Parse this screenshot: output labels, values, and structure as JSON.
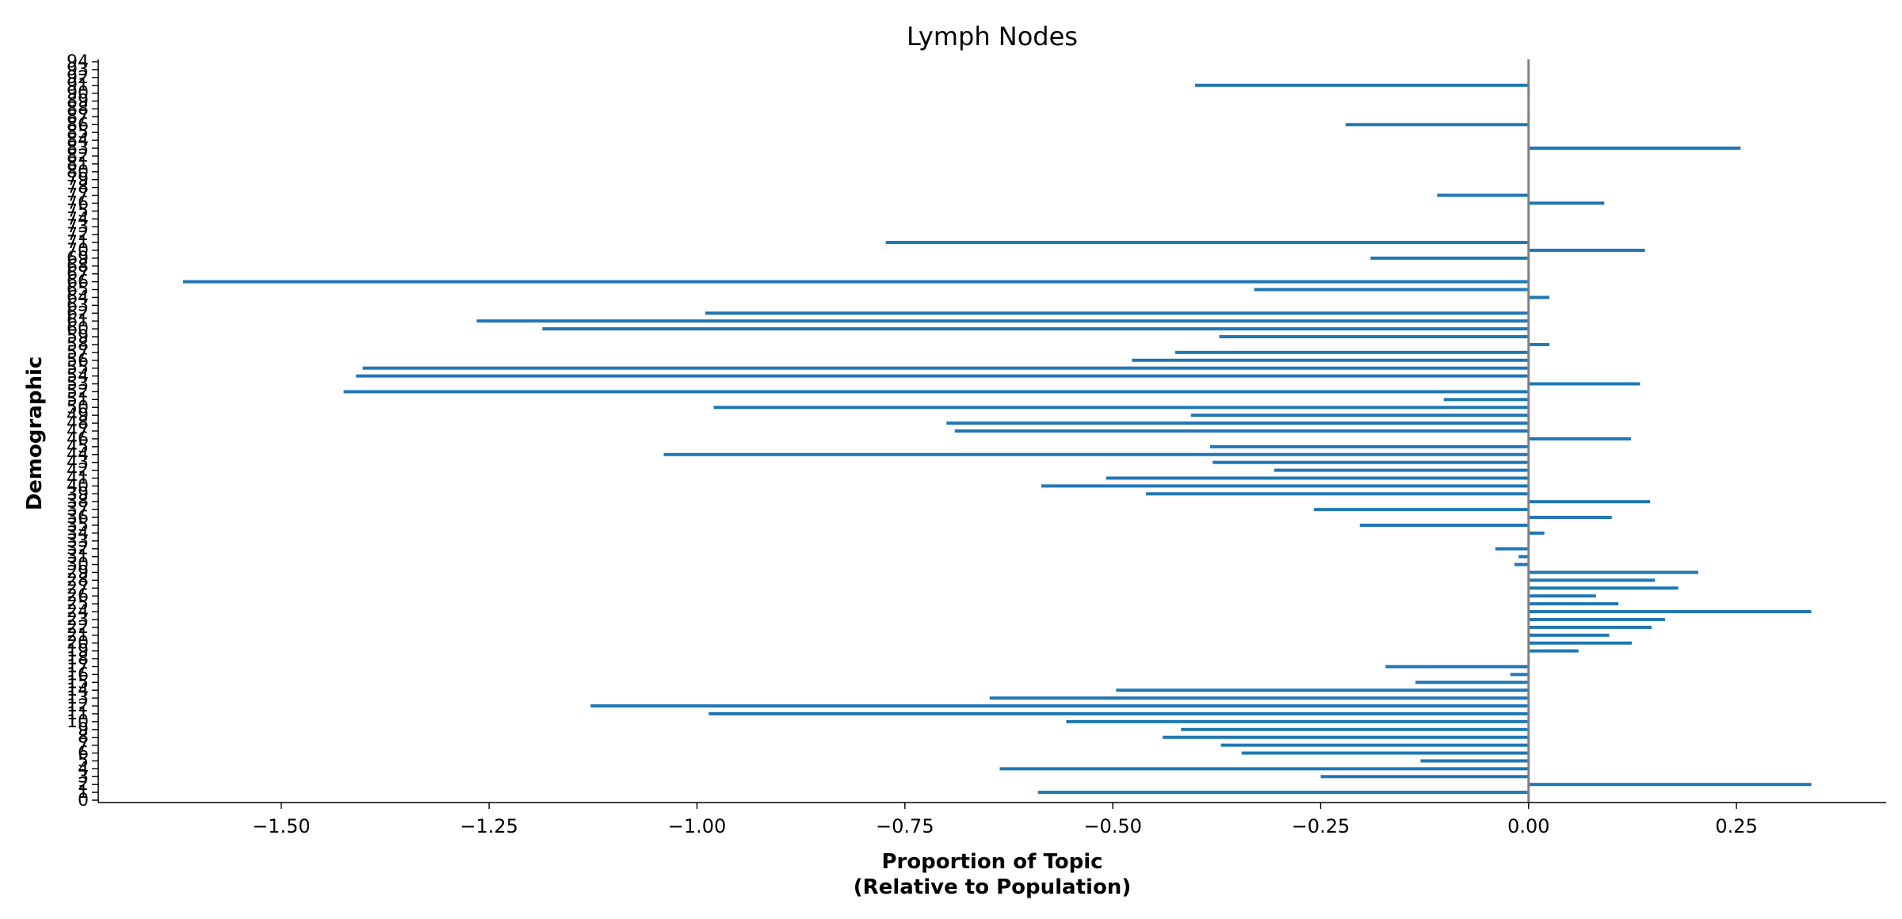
{
  "chart_data": {
    "type": "bar",
    "orientation": "horizontal",
    "title": "Lymph Nodes",
    "xlabel": [
      "Proportion of Topic",
      "(Relative to Population)"
    ],
    "ylabel": "Demographic",
    "xlim": [
      -1.72,
      0.43
    ],
    "ylim": [
      -0.3,
      94.3
    ],
    "xticks": [
      -1.5,
      -1.25,
      -1.0,
      -0.75,
      -0.5,
      -0.25,
      0.0,
      0.25
    ],
    "xtick_labels": [
      "−1.50",
      "−1.25",
      "−1.00",
      "−0.75",
      "−0.50",
      "−0.25",
      "0.00",
      "0.25"
    ],
    "yticks": [
      0,
      1,
      2,
      3,
      4,
      5,
      6,
      7,
      8,
      9,
      10,
      11,
      12,
      13,
      14,
      15,
      16,
      17,
      18,
      19,
      20,
      21,
      22,
      23,
      24,
      25,
      26,
      27,
      28,
      29,
      30,
      31,
      32,
      33,
      34,
      35,
      36,
      37,
      38,
      39,
      40,
      41,
      42,
      43,
      44,
      45,
      46,
      47,
      48,
      49,
      50,
      51,
      52,
      53,
      54,
      55,
      56,
      57,
      58,
      59,
      60,
      61,
      62,
      63,
      64,
      65,
      66,
      67,
      68,
      69,
      70,
      71,
      72,
      73,
      74,
      75,
      76,
      77,
      78,
      79,
      80,
      81,
      82,
      83,
      84,
      85,
      86,
      87,
      88,
      89,
      90,
      91,
      92,
      93,
      94
    ],
    "zero_line_color": "#808080",
    "bar_color": "#1f77b4",
    "grid": false,
    "bars": [
      {
        "y": 1,
        "value": -0.59
      },
      {
        "y": 2,
        "value": 0.34
      },
      {
        "y": 3,
        "value": -0.25
      },
      {
        "y": 4,
        "value": -0.636
      },
      {
        "y": 5,
        "value": -0.13
      },
      {
        "y": 6,
        "value": -0.345
      },
      {
        "y": 7,
        "value": -0.37
      },
      {
        "y": 8,
        "value": -0.44
      },
      {
        "y": 9,
        "value": -0.418
      },
      {
        "y": 10,
        "value": -0.556
      },
      {
        "y": 11,
        "value": -0.986
      },
      {
        "y": 12,
        "value": -1.128
      },
      {
        "y": 13,
        "value": -0.648
      },
      {
        "y": 14,
        "value": -0.496
      },
      {
        "y": 15,
        "value": -0.136
      },
      {
        "y": 16,
        "value": -0.022
      },
      {
        "y": 17,
        "value": -0.172
      },
      {
        "y": 19,
        "value": 0.06
      },
      {
        "y": 20,
        "value": 0.124
      },
      {
        "y": 21,
        "value": 0.097
      },
      {
        "y": 22,
        "value": 0.148
      },
      {
        "y": 23,
        "value": 0.164
      },
      {
        "y": 24,
        "value": 0.34
      },
      {
        "y": 25,
        "value": 0.108
      },
      {
        "y": 26,
        "value": 0.081
      },
      {
        "y": 27,
        "value": 0.18
      },
      {
        "y": 28,
        "value": 0.152
      },
      {
        "y": 29,
        "value": 0.204
      },
      {
        "y": 30,
        "value": -0.017
      },
      {
        "y": 31,
        "value": -0.012
      },
      {
        "y": 32,
        "value": -0.04
      },
      {
        "y": 34,
        "value": 0.019
      },
      {
        "y": 35,
        "value": -0.203
      },
      {
        "y": 36,
        "value": 0.1
      },
      {
        "y": 37,
        "value": -0.258
      },
      {
        "y": 38,
        "value": 0.146
      },
      {
        "y": 39,
        "value": -0.46
      },
      {
        "y": 40,
        "value": -0.586
      },
      {
        "y": 41,
        "value": -0.508
      },
      {
        "y": 42,
        "value": -0.306
      },
      {
        "y": 43,
        "value": -0.38
      },
      {
        "y": 44,
        "value": -1.04
      },
      {
        "y": 45,
        "value": -0.383
      },
      {
        "y": 46,
        "value": 0.123
      },
      {
        "y": 47,
        "value": -0.69
      },
      {
        "y": 48,
        "value": -0.7
      },
      {
        "y": 49,
        "value": -0.406
      },
      {
        "y": 50,
        "value": -0.98
      },
      {
        "y": 51,
        "value": -0.102
      },
      {
        "y": 52,
        "value": -1.425
      },
      {
        "y": 53,
        "value": 0.134
      },
      {
        "y": 54,
        "value": -1.41
      },
      {
        "y": 55,
        "value": -1.402
      },
      {
        "y": 56,
        "value": -0.477
      },
      {
        "y": 57,
        "value": -0.425
      },
      {
        "y": 58,
        "value": 0.025
      },
      {
        "y": 59,
        "value": -0.372
      },
      {
        "y": 60,
        "value": -1.186
      },
      {
        "y": 61,
        "value": -1.265
      },
      {
        "y": 62,
        "value": -0.99
      },
      {
        "y": 64,
        "value": 0.025
      },
      {
        "y": 65,
        "value": -0.33
      },
      {
        "y": 66,
        "value": -1.618
      },
      {
        "y": 69,
        "value": -0.19
      },
      {
        "y": 70,
        "value": 0.14
      },
      {
        "y": 71,
        "value": -0.773
      },
      {
        "y": 76,
        "value": 0.091
      },
      {
        "y": 77,
        "value": -0.11
      },
      {
        "y": 83,
        "value": 0.255
      },
      {
        "y": 86,
        "value": -0.22
      },
      {
        "y": 91,
        "value": -0.401
      }
    ]
  }
}
